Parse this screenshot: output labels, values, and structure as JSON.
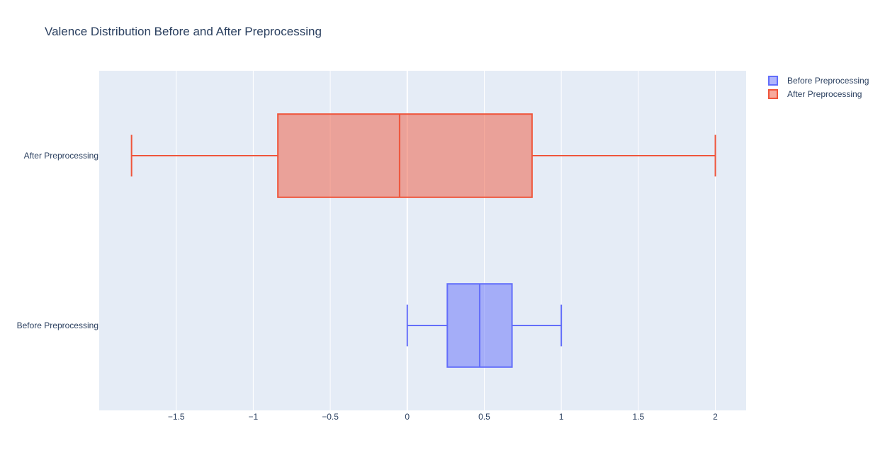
{
  "chart_data": {
    "type": "box",
    "orientation": "horizontal",
    "title": "Valence Distribution Before and After Preprocessing",
    "xlabel": "",
    "ylabel": "",
    "xlim": [
      -2.0,
      2.2
    ],
    "x_ticks": [
      -1.5,
      -1,
      -0.5,
      0,
      0.5,
      1,
      1.5,
      2
    ],
    "x_tick_labels": [
      "−1.5",
      "−1",
      "−0.5",
      "0",
      "0.5",
      "1",
      "1.5",
      "2"
    ],
    "categories": [
      "Before Preprocessing",
      "After Preprocessing"
    ],
    "grid": true,
    "legend_position": "top-right",
    "series": [
      {
        "name": "Before Preprocessing",
        "color": "#636efa",
        "min": 0.0,
        "q1": 0.26,
        "median": 0.47,
        "q3": 0.68,
        "max": 1.0
      },
      {
        "name": "After Preprocessing",
        "color": "#ef553b",
        "min": -1.79,
        "q1": -0.84,
        "median": -0.05,
        "q3": 0.81,
        "max": 2.0
      }
    ]
  }
}
